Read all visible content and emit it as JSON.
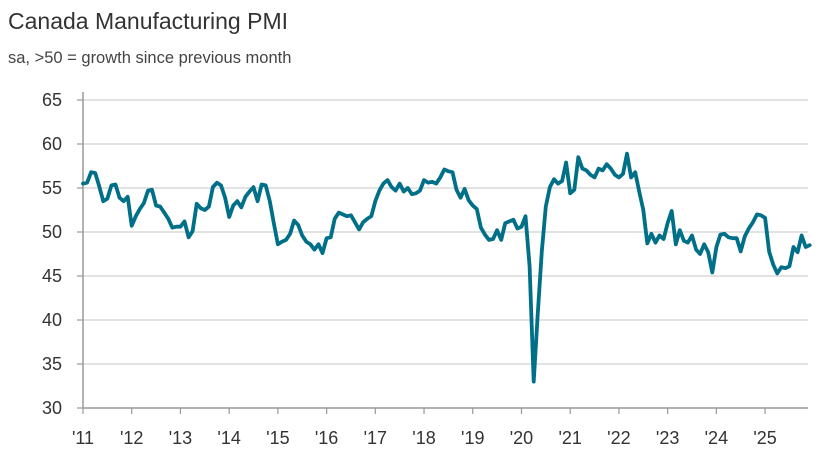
{
  "chart_data": {
    "type": "line",
    "title": "Canada Manufacturing PMI",
    "subtitle": "sa, >50 = growth since previous month",
    "xlabel": "",
    "ylabel": "",
    "ylim": [
      30,
      65
    ],
    "yticks": [
      "65",
      "60",
      "55",
      "50",
      "45",
      "40",
      "35",
      "30"
    ],
    "ytick_values": [
      65,
      60,
      55,
      50,
      45,
      40,
      35,
      30
    ],
    "xticks": [
      "'11",
      "'12",
      "'13",
      "'14",
      "'15",
      "'16",
      "'17",
      "'18",
      "'19",
      "'20",
      "'21",
      "'22",
      "'23",
      "'24",
      "'25"
    ],
    "x_start": "2011-01",
    "frequency": "monthly",
    "grid": true,
    "line_color": "#006f88",
    "grid_color": "#d9d9d9",
    "series": [
      {
        "name": "Canada Manufacturing PMI",
        "values": [
          55.5,
          55.6,
          56.8,
          56.7,
          55.2,
          53.5,
          53.8,
          55.3,
          55.4,
          53.9,
          53.5,
          54.0,
          50.7,
          51.8,
          52.6,
          53.3,
          54.7,
          54.8,
          53.0,
          52.9,
          52.2,
          51.5,
          50.5,
          50.6,
          50.6,
          51.2,
          49.4,
          50.1,
          53.2,
          52.7,
          52.5,
          52.9,
          55.1,
          55.6,
          55.3,
          53.9,
          51.7,
          53.0,
          53.5,
          52.8,
          54.0,
          54.6,
          55.1,
          53.5,
          55.4,
          55.3,
          53.5,
          51.0,
          48.6,
          48.9,
          49.1,
          49.8,
          51.3,
          50.8,
          49.6,
          48.9,
          48.6,
          48.0,
          48.6,
          47.6,
          49.3,
          49.4,
          51.5,
          52.2,
          52.0,
          51.8,
          51.9,
          51.1,
          50.3,
          51.1,
          51.5,
          51.8,
          53.5,
          54.7,
          55.5,
          55.9,
          55.1,
          54.7,
          55.5,
          54.6,
          55.0,
          54.3,
          54.4,
          54.7,
          55.9,
          55.6,
          55.7,
          55.5,
          56.2,
          57.1,
          56.9,
          56.8,
          54.8,
          53.9,
          54.9,
          53.6,
          53.0,
          52.6,
          50.5,
          49.7,
          49.1,
          49.2,
          50.2,
          49.1,
          51.0,
          51.2,
          51.4,
          50.4,
          50.6,
          51.8,
          46.1,
          33.0,
          40.6,
          47.8,
          52.9,
          55.1,
          56.0,
          55.5,
          55.8,
          57.9,
          54.4,
          54.8,
          58.5,
          57.2,
          57.0,
          56.5,
          56.2,
          57.2,
          57.0,
          57.7,
          57.2,
          56.5,
          56.2,
          56.6,
          58.9,
          56.2,
          56.8,
          54.6,
          52.5,
          48.7,
          49.8,
          48.8,
          49.6,
          49.2,
          51.0,
          52.4,
          48.6,
          50.2,
          49.0,
          48.8,
          49.6,
          48.0,
          47.5,
          48.6,
          47.7,
          45.4,
          48.3,
          49.7,
          49.8,
          49.4,
          49.3,
          49.3,
          47.8,
          49.5,
          50.4,
          51.1,
          52.0,
          51.9,
          51.6,
          47.8,
          46.3,
          45.3,
          46.0,
          45.9,
          46.1,
          48.3,
          47.7,
          49.6,
          48.3,
          48.5
        ]
      }
    ]
  }
}
